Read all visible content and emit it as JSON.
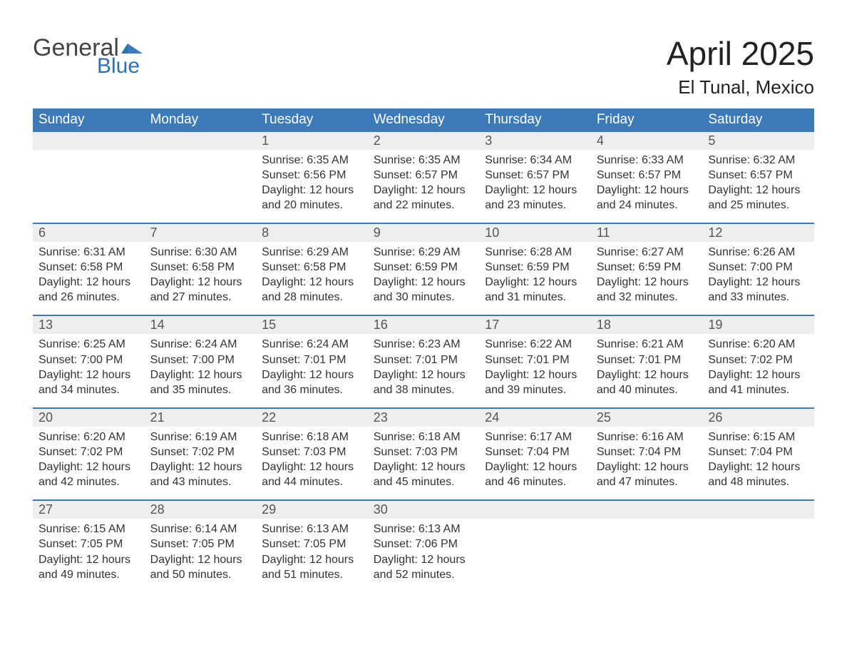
{
  "logo": {
    "word1": "General",
    "word2": "Blue"
  },
  "title": "April 2025",
  "location": "El Tunal, Mexico",
  "colors": {
    "header_bg": "#3d7ab8",
    "header_fg": "#ffffff",
    "daynum_bg": "#eeeeee",
    "accent": "#2f6fb0",
    "text": "#333333"
  },
  "weekdays": [
    "Sunday",
    "Monday",
    "Tuesday",
    "Wednesday",
    "Thursday",
    "Friday",
    "Saturday"
  ],
  "weeks": [
    [
      null,
      null,
      {
        "n": "1",
        "sunrise": "Sunrise: 6:35 AM",
        "sunset": "Sunset: 6:56 PM",
        "day1": "Daylight: 12 hours",
        "day2": "and 20 minutes."
      },
      {
        "n": "2",
        "sunrise": "Sunrise: 6:35 AM",
        "sunset": "Sunset: 6:57 PM",
        "day1": "Daylight: 12 hours",
        "day2": "and 22 minutes."
      },
      {
        "n": "3",
        "sunrise": "Sunrise: 6:34 AM",
        "sunset": "Sunset: 6:57 PM",
        "day1": "Daylight: 12 hours",
        "day2": "and 23 minutes."
      },
      {
        "n": "4",
        "sunrise": "Sunrise: 6:33 AM",
        "sunset": "Sunset: 6:57 PM",
        "day1": "Daylight: 12 hours",
        "day2": "and 24 minutes."
      },
      {
        "n": "5",
        "sunrise": "Sunrise: 6:32 AM",
        "sunset": "Sunset: 6:57 PM",
        "day1": "Daylight: 12 hours",
        "day2": "and 25 minutes."
      }
    ],
    [
      {
        "n": "6",
        "sunrise": "Sunrise: 6:31 AM",
        "sunset": "Sunset: 6:58 PM",
        "day1": "Daylight: 12 hours",
        "day2": "and 26 minutes."
      },
      {
        "n": "7",
        "sunrise": "Sunrise: 6:30 AM",
        "sunset": "Sunset: 6:58 PM",
        "day1": "Daylight: 12 hours",
        "day2": "and 27 minutes."
      },
      {
        "n": "8",
        "sunrise": "Sunrise: 6:29 AM",
        "sunset": "Sunset: 6:58 PM",
        "day1": "Daylight: 12 hours",
        "day2": "and 28 minutes."
      },
      {
        "n": "9",
        "sunrise": "Sunrise: 6:29 AM",
        "sunset": "Sunset: 6:59 PM",
        "day1": "Daylight: 12 hours",
        "day2": "and 30 minutes."
      },
      {
        "n": "10",
        "sunrise": "Sunrise: 6:28 AM",
        "sunset": "Sunset: 6:59 PM",
        "day1": "Daylight: 12 hours",
        "day2": "and 31 minutes."
      },
      {
        "n": "11",
        "sunrise": "Sunrise: 6:27 AM",
        "sunset": "Sunset: 6:59 PM",
        "day1": "Daylight: 12 hours",
        "day2": "and 32 minutes."
      },
      {
        "n": "12",
        "sunrise": "Sunrise: 6:26 AM",
        "sunset": "Sunset: 7:00 PM",
        "day1": "Daylight: 12 hours",
        "day2": "and 33 minutes."
      }
    ],
    [
      {
        "n": "13",
        "sunrise": "Sunrise: 6:25 AM",
        "sunset": "Sunset: 7:00 PM",
        "day1": "Daylight: 12 hours",
        "day2": "and 34 minutes."
      },
      {
        "n": "14",
        "sunrise": "Sunrise: 6:24 AM",
        "sunset": "Sunset: 7:00 PM",
        "day1": "Daylight: 12 hours",
        "day2": "and 35 minutes."
      },
      {
        "n": "15",
        "sunrise": "Sunrise: 6:24 AM",
        "sunset": "Sunset: 7:01 PM",
        "day1": "Daylight: 12 hours",
        "day2": "and 36 minutes."
      },
      {
        "n": "16",
        "sunrise": "Sunrise: 6:23 AM",
        "sunset": "Sunset: 7:01 PM",
        "day1": "Daylight: 12 hours",
        "day2": "and 38 minutes."
      },
      {
        "n": "17",
        "sunrise": "Sunrise: 6:22 AM",
        "sunset": "Sunset: 7:01 PM",
        "day1": "Daylight: 12 hours",
        "day2": "and 39 minutes."
      },
      {
        "n": "18",
        "sunrise": "Sunrise: 6:21 AM",
        "sunset": "Sunset: 7:01 PM",
        "day1": "Daylight: 12 hours",
        "day2": "and 40 minutes."
      },
      {
        "n": "19",
        "sunrise": "Sunrise: 6:20 AM",
        "sunset": "Sunset: 7:02 PM",
        "day1": "Daylight: 12 hours",
        "day2": "and 41 minutes."
      }
    ],
    [
      {
        "n": "20",
        "sunrise": "Sunrise: 6:20 AM",
        "sunset": "Sunset: 7:02 PM",
        "day1": "Daylight: 12 hours",
        "day2": "and 42 minutes."
      },
      {
        "n": "21",
        "sunrise": "Sunrise: 6:19 AM",
        "sunset": "Sunset: 7:02 PM",
        "day1": "Daylight: 12 hours",
        "day2": "and 43 minutes."
      },
      {
        "n": "22",
        "sunrise": "Sunrise: 6:18 AM",
        "sunset": "Sunset: 7:03 PM",
        "day1": "Daylight: 12 hours",
        "day2": "and 44 minutes."
      },
      {
        "n": "23",
        "sunrise": "Sunrise: 6:18 AM",
        "sunset": "Sunset: 7:03 PM",
        "day1": "Daylight: 12 hours",
        "day2": "and 45 minutes."
      },
      {
        "n": "24",
        "sunrise": "Sunrise: 6:17 AM",
        "sunset": "Sunset: 7:04 PM",
        "day1": "Daylight: 12 hours",
        "day2": "and 46 minutes."
      },
      {
        "n": "25",
        "sunrise": "Sunrise: 6:16 AM",
        "sunset": "Sunset: 7:04 PM",
        "day1": "Daylight: 12 hours",
        "day2": "and 47 minutes."
      },
      {
        "n": "26",
        "sunrise": "Sunrise: 6:15 AM",
        "sunset": "Sunset: 7:04 PM",
        "day1": "Daylight: 12 hours",
        "day2": "and 48 minutes."
      }
    ],
    [
      {
        "n": "27",
        "sunrise": "Sunrise: 6:15 AM",
        "sunset": "Sunset: 7:05 PM",
        "day1": "Daylight: 12 hours",
        "day2": "and 49 minutes."
      },
      {
        "n": "28",
        "sunrise": "Sunrise: 6:14 AM",
        "sunset": "Sunset: 7:05 PM",
        "day1": "Daylight: 12 hours",
        "day2": "and 50 minutes."
      },
      {
        "n": "29",
        "sunrise": "Sunrise: 6:13 AM",
        "sunset": "Sunset: 7:05 PM",
        "day1": "Daylight: 12 hours",
        "day2": "and 51 minutes."
      },
      {
        "n": "30",
        "sunrise": "Sunrise: 6:13 AM",
        "sunset": "Sunset: 7:06 PM",
        "day1": "Daylight: 12 hours",
        "day2": "and 52 minutes."
      },
      null,
      null,
      null
    ]
  ]
}
